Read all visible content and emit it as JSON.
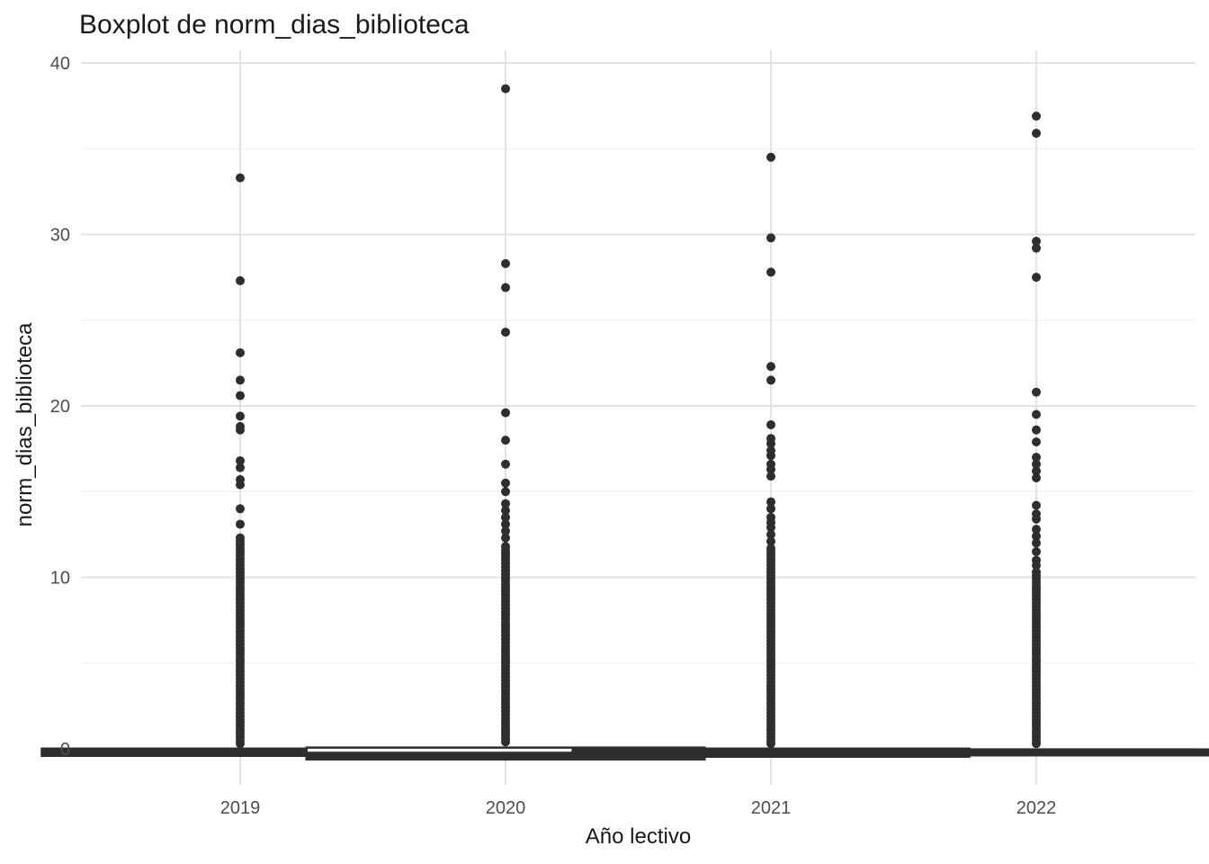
{
  "title": "Boxplot de norm_dias_biblioteca",
  "chart_data": {
    "type": "boxplot",
    "title": "Boxplot de norm_dias_biblioteca",
    "xlabel": "Año lectivo",
    "ylabel": "norm_dias_biblioteca",
    "categories": [
      "2019",
      "2020",
      "2021",
      "2022"
    ],
    "y_ticks": [
      0,
      10,
      20,
      30,
      40
    ],
    "y_minor_ticks": [
      5,
      15,
      25,
      35
    ],
    "ylim": [
      -2,
      41
    ],
    "grid": "major+minor horizontal and vertical, no axis lines (theme_minimal)",
    "legend": "none",
    "series": [
      {
        "category": "2019",
        "box": {
          "q1": -0.45,
          "median": -0.25,
          "q3": 0.05,
          "solid_black": true
        },
        "outliers": [
          33.3,
          27.3,
          23.1,
          21.5,
          20.6,
          19.4,
          18.8,
          18.6,
          16.8,
          16.4,
          15.7,
          15.4,
          14.0,
          13.1
        ],
        "dense_outlier_range": [
          0.3,
          12.4
        ]
      },
      {
        "category": "2020",
        "box": {
          "q1": -0.62,
          "median": -0.3,
          "q3": 0.07,
          "solid_black": false
        },
        "outliers": [
          38.5,
          28.3,
          26.9,
          24.3,
          19.6,
          18.0,
          16.6,
          15.5,
          15.0,
          14.3,
          13.9,
          13.5,
          13.1,
          12.7,
          12.3
        ],
        "dense_outlier_range": [
          0.4,
          11.9
        ]
      },
      {
        "category": "2021",
        "box": {
          "q1": -0.5,
          "median": -0.25,
          "q3": 0.05,
          "solid_black": true
        },
        "outliers": [
          34.5,
          29.8,
          27.8,
          22.3,
          21.5,
          18.9,
          18.1,
          17.8,
          17.4,
          17.1,
          16.6,
          16.3,
          15.9,
          14.4,
          14.0,
          13.5,
          13.2,
          12.9,
          12.5,
          12.1
        ],
        "dense_outlier_range": [
          0.3,
          11.7
        ]
      },
      {
        "category": "2022",
        "box": {
          "q1": -0.4,
          "median": -0.2,
          "q3": 0.0,
          "solid_black": true
        },
        "outliers": [
          36.9,
          35.9,
          29.6,
          29.2,
          27.5,
          20.8,
          19.5,
          18.6,
          17.9,
          17.0,
          16.6,
          16.2,
          15.8,
          14.2,
          13.7,
          13.4,
          12.8,
          12.4,
          12.0,
          11.5,
          11.0,
          10.7,
          10.3
        ],
        "dense_outlier_range": [
          0.3,
          10.1
        ]
      }
    ],
    "colors": {
      "point": "#2e2e2e",
      "box_border": "#2e2e2e",
      "box_fill": "#ffffff",
      "grid_major": "#e2e2e2",
      "grid_minor": "#ededed",
      "tick_label": "#4d4d4d",
      "text": "#1a1a1a",
      "background": "#ffffff"
    }
  }
}
